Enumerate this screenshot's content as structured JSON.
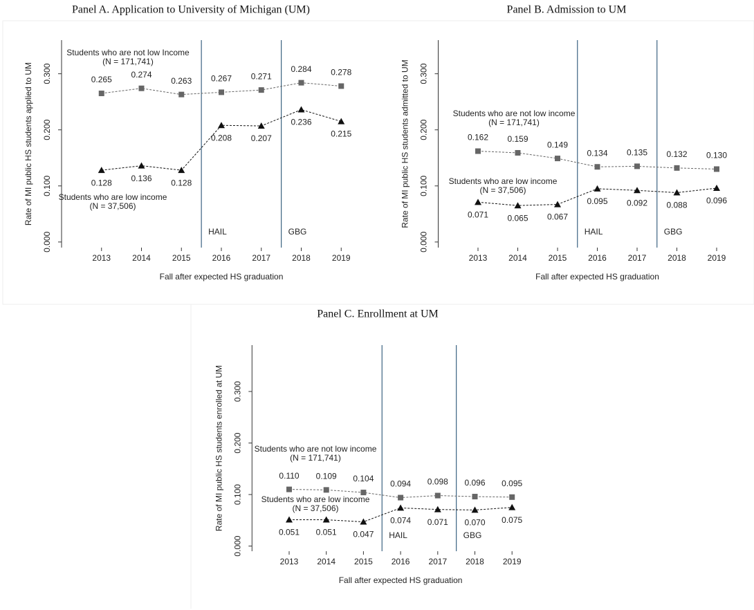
{
  "chart_data": [
    {
      "type": "line",
      "title": "Panel A. Application to University of Michigan (UM)",
      "ylabel": "Rate of MI public HS students applied to UM",
      "xlabel": "Fall after expected HS graduation",
      "x": [
        2013,
        2014,
        2015,
        2016,
        2017,
        2018,
        2019
      ],
      "xlim": [
        2012,
        2020
      ],
      "xticks": [
        2013,
        2014,
        2015,
        2016,
        2017,
        2018,
        2019
      ],
      "ylim": [
        -0.01,
        0.36
      ],
      "yticks": [
        {
          "value": 0,
          "label": "0.000"
        },
        {
          "value": 0.1,
          "label": "0.100"
        },
        {
          "value": 0.2,
          "label": "0.200"
        },
        {
          "value": 0.3,
          "label": "0.300"
        }
      ],
      "vlines": [
        {
          "x": 2015.5,
          "label": "HAIL"
        },
        {
          "x": 2017.5,
          "label": "GBG"
        }
      ],
      "vline_color": "#3b6282",
      "series": [
        {
          "name": "Students who are not low Income",
          "note": "(N =  171,741)",
          "color": "#666666",
          "marker": "square",
          "values": [
            0.265,
            0.274,
            0.263,
            0.267,
            0.271,
            0.284,
            0.278
          ],
          "value_labels": [
            "0.265",
            "0.274",
            "0.263",
            "0.267",
            "0.271",
            "0.284",
            "0.278"
          ]
        },
        {
          "name": "Students who are low income",
          "note": "(N =  37,506)",
          "color": "#111111",
          "marker": "triangle",
          "values": [
            0.128,
            0.136,
            0.128,
            0.208,
            0.207,
            0.236,
            0.215
          ],
          "value_labels": [
            "0.128",
            "0.136",
            "0.128",
            "0.208",
            "0.207",
            "0.236",
            "0.215"
          ]
        }
      ]
    },
    {
      "type": "line",
      "title": "Panel B. Admission to UM",
      "ylabel": "Rate of MI public HS students admitted to UM",
      "xlabel": "Fall after expected HS graduation",
      "x": [
        2013,
        2014,
        2015,
        2016,
        2017,
        2018,
        2019
      ],
      "xlim": [
        2012,
        2020
      ],
      "xticks": [
        2013,
        2014,
        2015,
        2016,
        2017,
        2018,
        2019
      ],
      "ylim": [
        -0.01,
        0.36
      ],
      "yticks": [
        {
          "value": 0,
          "label": "0.000"
        },
        {
          "value": 0.1,
          "label": "0.100"
        },
        {
          "value": 0.2,
          "label": "0.200"
        },
        {
          "value": 0.3,
          "label": "0.300"
        }
      ],
      "vlines": [
        {
          "x": 2015.5,
          "label": "HAIL"
        },
        {
          "x": 2017.5,
          "label": "GBG"
        }
      ],
      "vline_color": "#3b6282",
      "series": [
        {
          "name": "Students who are not low income",
          "note": "(N =  171,741)",
          "color": "#666666",
          "marker": "square",
          "values": [
            0.162,
            0.159,
            0.149,
            0.134,
            0.135,
            0.132,
            0.13
          ],
          "value_labels": [
            "0.162",
            "0.159",
            "0.149",
            "0.134",
            "0.135",
            "0.132",
            "0.130"
          ]
        },
        {
          "name": "Students who are low income",
          "note": "(N =  37,506)",
          "color": "#111111",
          "marker": "triangle",
          "values": [
            0.071,
            0.065,
            0.067,
            0.095,
            0.092,
            0.088,
            0.096
          ],
          "value_labels": [
            "0.071",
            "0.065",
            "0.067",
            "0.095",
            "0.092",
            "0.088",
            "0.096"
          ]
        }
      ]
    },
    {
      "type": "line",
      "title": "Panel C. Enrollment at UM",
      "ylabel": "Rate of MI public HS students enrolled at UM",
      "xlabel": "Fall after expected HS graduation",
      "x": [
        2013,
        2014,
        2015,
        2016,
        2017,
        2018,
        2019
      ],
      "xlim": [
        2012,
        2020
      ],
      "xticks": [
        2013,
        2014,
        2015,
        2016,
        2017,
        2018,
        2019
      ],
      "ylim": [
        -0.01,
        0.39
      ],
      "yticks": [
        {
          "value": 0,
          "label": "0.000"
        },
        {
          "value": 0.1,
          "label": "0.100"
        },
        {
          "value": 0.2,
          "label": "0.200"
        },
        {
          "value": 0.3,
          "label": "0.300"
        }
      ],
      "vlines": [
        {
          "x": 2015.5,
          "label": "HAIL"
        },
        {
          "x": 2017.5,
          "label": "GBG"
        }
      ],
      "vline_color": "#3b6282",
      "series": [
        {
          "name": "Students who are not low income",
          "note": "(N =  171,741)",
          "color": "#666666",
          "marker": "square",
          "values": [
            0.11,
            0.109,
            0.104,
            0.094,
            0.098,
            0.096,
            0.095
          ],
          "value_labels": [
            "0.110",
            "0.109",
            "0.104",
            "0.094",
            "0.098",
            "0.096",
            "0.095"
          ]
        },
        {
          "name": "Students who are low income",
          "note": "(N =  37,506)",
          "color": "#111111",
          "marker": "triangle",
          "values": [
            0.051,
            0.051,
            0.047,
            0.074,
            0.071,
            0.07,
            0.075
          ],
          "value_labels": [
            "0.051",
            "0.051",
            "0.047",
            "0.074",
            "0.071",
            "0.070",
            "0.075"
          ]
        }
      ]
    }
  ]
}
